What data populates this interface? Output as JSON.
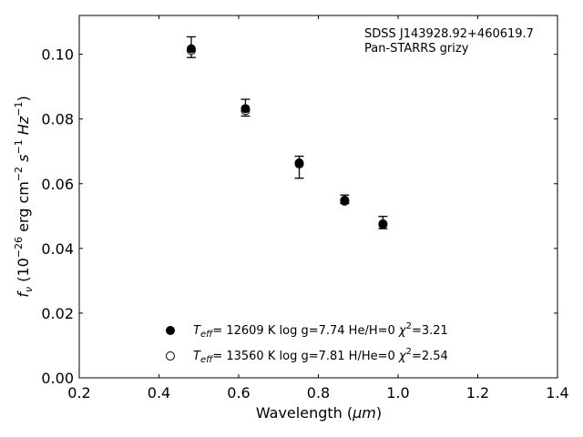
{
  "chart_data": {
    "type": "scatter",
    "xlabel_text": "Wavelength (",
    "xlabel_unit": "μm",
    "xlabel_close": ")",
    "ylabel_f": "f",
    "ylabel_sub": "ν",
    "ylabel_rest": " (10",
    "ylabel_exp": "−26",
    "ylabel_units": " erg cm",
    "xlim": [
      0.2,
      1.4
    ],
    "ylim": [
      0.0,
      0.112
    ],
    "xticks": [
      "0.2",
      "0.4",
      "0.6",
      "0.8",
      "1.0",
      "1.2",
      "1.4"
    ],
    "yticks": [
      "0.00",
      "0.02",
      "0.04",
      "0.06",
      "0.08",
      "0.10"
    ],
    "annotation": [
      "SDSS J143928.92+460619.7",
      "Pan-STARRS grizy"
    ],
    "observed": {
      "x": [
        0.481,
        0.617,
        0.752,
        0.866,
        0.962
      ],
      "y": [
        0.1022,
        0.0835,
        0.0651,
        0.0552,
        0.048
      ],
      "err": [
        0.0032,
        0.0026,
        0.0034,
        0.0013,
        0.0019
      ]
    },
    "series": [
      {
        "label_teff": "= 12609 K  log g=7.74  He/H=0  ",
        "label_chi": "=3.21",
        "marker": "filled",
        "x": [
          0.481,
          0.617,
          0.752,
          0.866,
          0.962
        ],
        "y": [
          0.1017,
          0.0832,
          0.0664,
          0.0549,
          0.0476
        ]
      },
      {
        "label_teff": "= 13560 K  log g=7.81  H/He=0  ",
        "label_chi": "=2.54",
        "marker": "open",
        "x": [
          0.481,
          0.617,
          0.752,
          0.866,
          0.962
        ],
        "y": [
          0.1012,
          0.0826,
          0.0661,
          0.0546,
          0.0474
        ]
      }
    ],
    "legend_position": "lower-center",
    "grid": false
  }
}
